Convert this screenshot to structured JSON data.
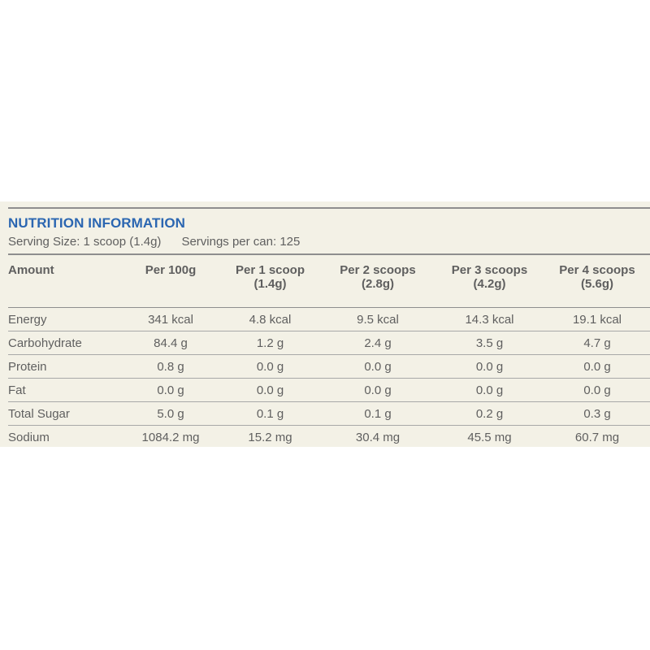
{
  "title": "NUTRITION INFORMATION",
  "serving_size": "Serving Size: 1 scoop (1.4g)",
  "servings_per_can": "Servings per can: 125",
  "columns": [
    {
      "line1": "Amount",
      "line2": ""
    },
    {
      "line1": "Per 100g",
      "line2": ""
    },
    {
      "line1": "Per 1 scoop",
      "line2": "(1.4g)"
    },
    {
      "line1": "Per 2 scoops",
      "line2": "(2.8g)"
    },
    {
      "line1": "Per 3 scoops",
      "line2": "(4.2g)"
    },
    {
      "line1": "Per 4 scoops",
      "line2": "(5.6g)"
    }
  ],
  "rows": [
    [
      "Energy",
      "341 kcal",
      "4.8 kcal",
      "9.5 kcal",
      "14.3 kcal",
      "19.1 kcal"
    ],
    [
      "Carbohydrate",
      "84.4 g",
      "1.2 g",
      "2.4 g",
      "3.5 g",
      "4.7 g"
    ],
    [
      "Protein",
      "0.8 g",
      "0.0 g",
      "0.0 g",
      "0.0 g",
      "0.0 g"
    ],
    [
      "Fat",
      "0.0 g",
      "0.0 g",
      "0.0 g",
      "0.0 g",
      "0.0 g"
    ],
    [
      "Total Sugar",
      "5.0 g",
      "0.1 g",
      "0.1 g",
      "0.2 g",
      "0.3 g"
    ],
    [
      "Sodium",
      "1084.2 mg",
      "15.2 mg",
      "30.4 mg",
      "45.5 mg",
      "60.7 mg"
    ]
  ],
  "colors": {
    "panel_background": "#f3f1e6",
    "title": "#2b66b1",
    "text": "#5f5f5f",
    "rule": "#8e8e8e"
  }
}
